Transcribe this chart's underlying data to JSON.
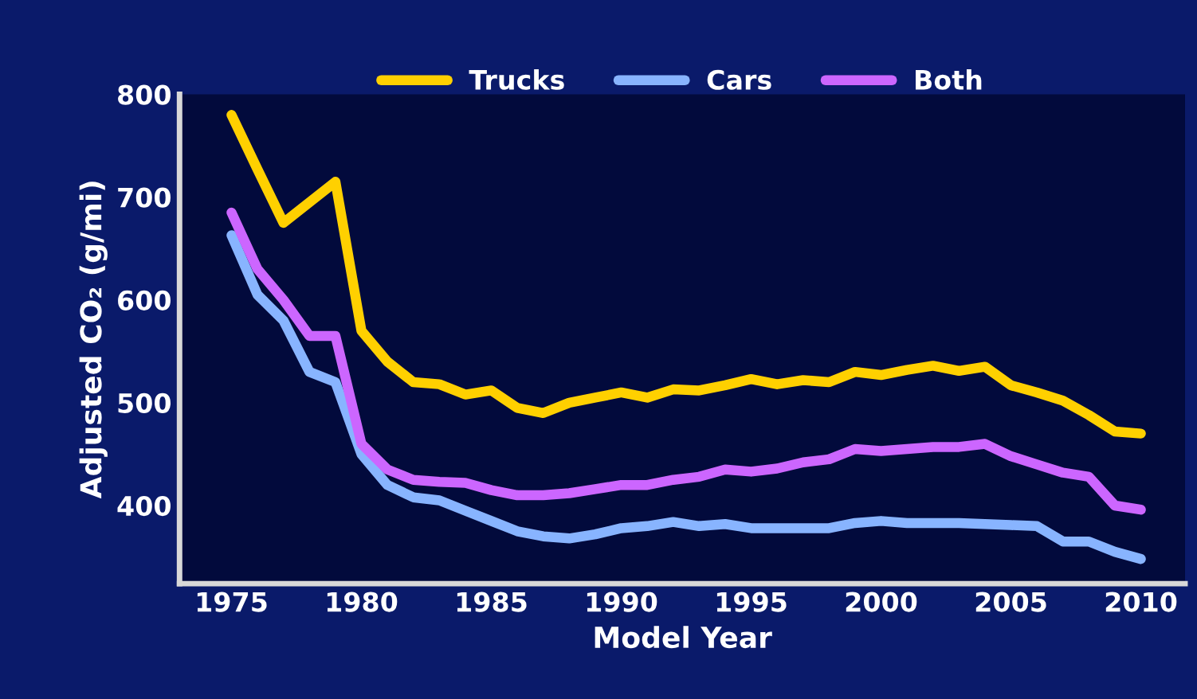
{
  "chart_data": {
    "type": "line",
    "xlabel": "Model Year",
    "ylabel": "Adjusted CO₂ (g/mi)",
    "x": [
      1975,
      1976,
      1977,
      1978,
      1979,
      1980,
      1981,
      1982,
      1983,
      1984,
      1985,
      1986,
      1987,
      1988,
      1989,
      1990,
      1991,
      1992,
      1993,
      1994,
      1995,
      1996,
      1997,
      1998,
      1999,
      2000,
      2001,
      2002,
      2003,
      2004,
      2005,
      2006,
      2007,
      2008,
      2009,
      2010
    ],
    "series": [
      {
        "name": "Trucks",
        "color": "#ffd000",
        "values": [
          780,
          727,
          675,
          695,
          715,
          570,
          540,
          520,
          518,
          508,
          512,
          495,
          490,
          500,
          505,
          510,
          505,
          513,
          512,
          517,
          523,
          518,
          522,
          520,
          530,
          527,
          532,
          536,
          531,
          535,
          517,
          510,
          502,
          488,
          472,
          470
        ]
      },
      {
        "name": "Cars",
        "color": "#88b4ff",
        "values": [
          663,
          605,
          580,
          530,
          520,
          450,
          420,
          408,
          405,
          395,
          385,
          375,
          370,
          368,
          372,
          378,
          380,
          384,
          380,
          382,
          378,
          378,
          378,
          378,
          383,
          385,
          383,
          383,
          383,
          382,
          381,
          380,
          365,
          365,
          355,
          348
        ]
      },
      {
        "name": "Both",
        "color": "#cc66ff",
        "values": [
          685,
          630,
          600,
          565,
          565,
          460,
          435,
          425,
          423,
          422,
          415,
          410,
          410,
          412,
          416,
          420,
          420,
          425,
          428,
          435,
          433,
          436,
          442,
          445,
          455,
          453,
          455,
          457,
          457,
          460,
          448,
          440,
          432,
          428,
          400,
          396
        ]
      }
    ],
    "xlim": [
      1973,
      2011.7
    ],
    "ylim": [
      324,
      800
    ],
    "xticks": [
      1975,
      1980,
      1985,
      1990,
      1995,
      2000,
      2005,
      2010
    ],
    "yticks": [
      400,
      500,
      600,
      700,
      800
    ],
    "grid": false,
    "legend": "top",
    "marker": "none",
    "line_style": "solid"
  }
}
